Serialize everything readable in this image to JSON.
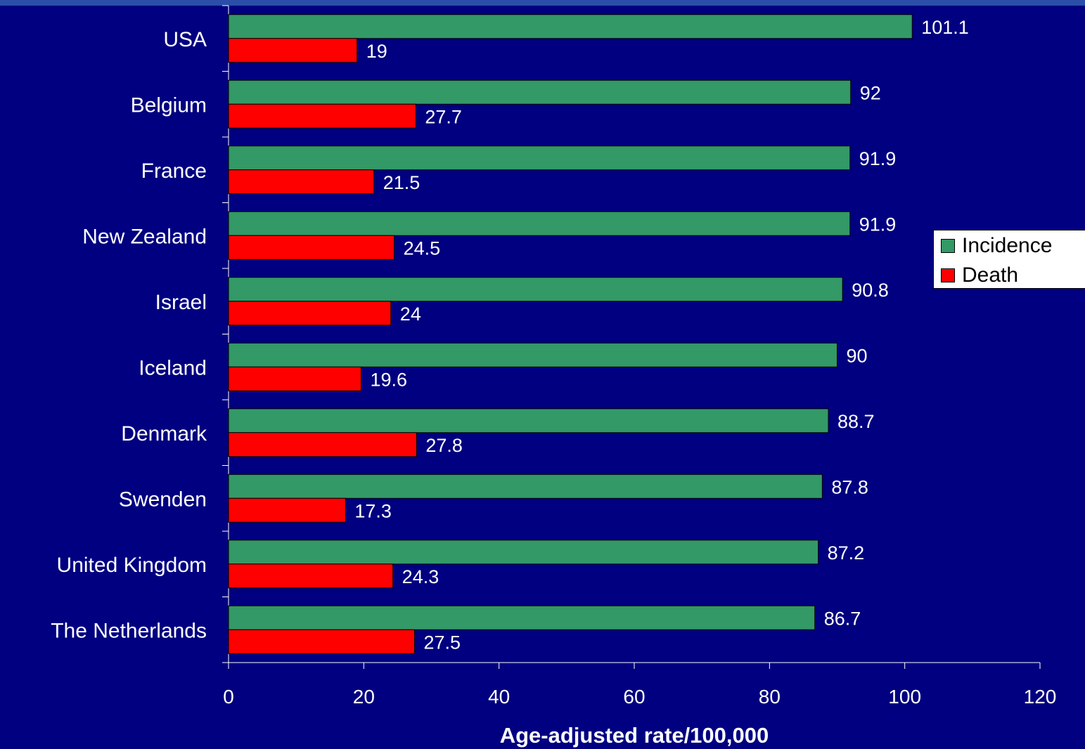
{
  "chart_data": {
    "type": "bar",
    "orientation": "horizontal",
    "categories": [
      "USA",
      "Belgium",
      "France",
      "New Zealand",
      "Israel",
      "Iceland",
      "Denmark",
      "Swenden",
      "United Kingdom",
      "The Netherlands"
    ],
    "series": [
      {
        "name": "Incidence",
        "color": "#339966",
        "values": [
          101.1,
          92,
          91.9,
          91.9,
          90.8,
          90,
          88.7,
          87.8,
          87.2,
          86.7
        ]
      },
      {
        "name": "Death",
        "color": "#ff0000",
        "values": [
          19,
          27.7,
          21.5,
          24.5,
          24,
          19.6,
          27.8,
          17.3,
          24.3,
          27.5
        ]
      }
    ],
    "data_labels": [
      [
        "101.1",
        "92",
        "91.9",
        "91.9",
        "90.8",
        "90",
        "88.7",
        "87.8",
        "87.2",
        "86.7"
      ],
      [
        "19",
        "27.7",
        "21.5",
        "24.5",
        "24",
        "19.6",
        "27.8",
        "17.3",
        "24.3",
        "27.5"
      ]
    ],
    "xlabel": "Age-adjusted rate/100,000",
    "xlim": [
      0,
      120
    ],
    "xticks": [
      0,
      20,
      40,
      60,
      80,
      100,
      120
    ],
    "tick_labels": [
      "0",
      "20",
      "40",
      "60",
      "80",
      "100",
      "120"
    ],
    "grid": false,
    "legend_position": "right"
  },
  "legend": {
    "items": [
      {
        "label": "Incidence",
        "color": "#339966"
      },
      {
        "label": "Death",
        "color": "#ff0000"
      }
    ]
  }
}
